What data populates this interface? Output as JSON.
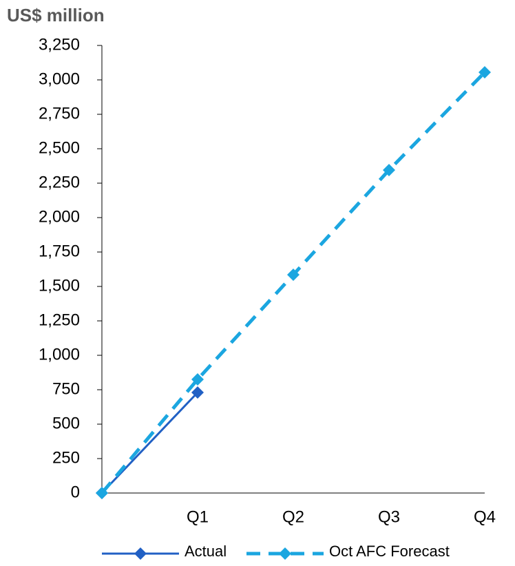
{
  "chart_data": {
    "type": "line",
    "title": "US$ million",
    "categories": [
      null,
      "Q1",
      "Q2",
      "Q3",
      "Q4"
    ],
    "series": [
      {
        "name": "Actual",
        "color": "#2160c4",
        "dashed": false,
        "values": [
          0,
          730,
          null,
          null,
          null
        ]
      },
      {
        "name": "Oct AFC Forecast",
        "color": "#1ba6e0",
        "dashed": true,
        "values": [
          0,
          825,
          1585,
          2345,
          3055
        ]
      }
    ],
    "ylim": [
      0,
      3250
    ],
    "yticks": [
      0,
      250,
      500,
      750,
      {
        "value": 1000,
        "label": "1,000"
      },
      {
        "value": 1250,
        "label": "1,250"
      },
      {
        "value": 1500,
        "label": "1,500"
      },
      {
        "value": 1750,
        "label": "1,750"
      },
      {
        "value": 2000,
        "label": "2,000"
      },
      {
        "value": 2250,
        "label": "2,250"
      },
      {
        "value": 2500,
        "label": "2,500"
      },
      {
        "value": 2750,
        "label": "2,750"
      },
      {
        "value": 3000,
        "label": "3,000"
      },
      {
        "value": 3250,
        "label": "3,250"
      }
    ],
    "grid": false
  }
}
